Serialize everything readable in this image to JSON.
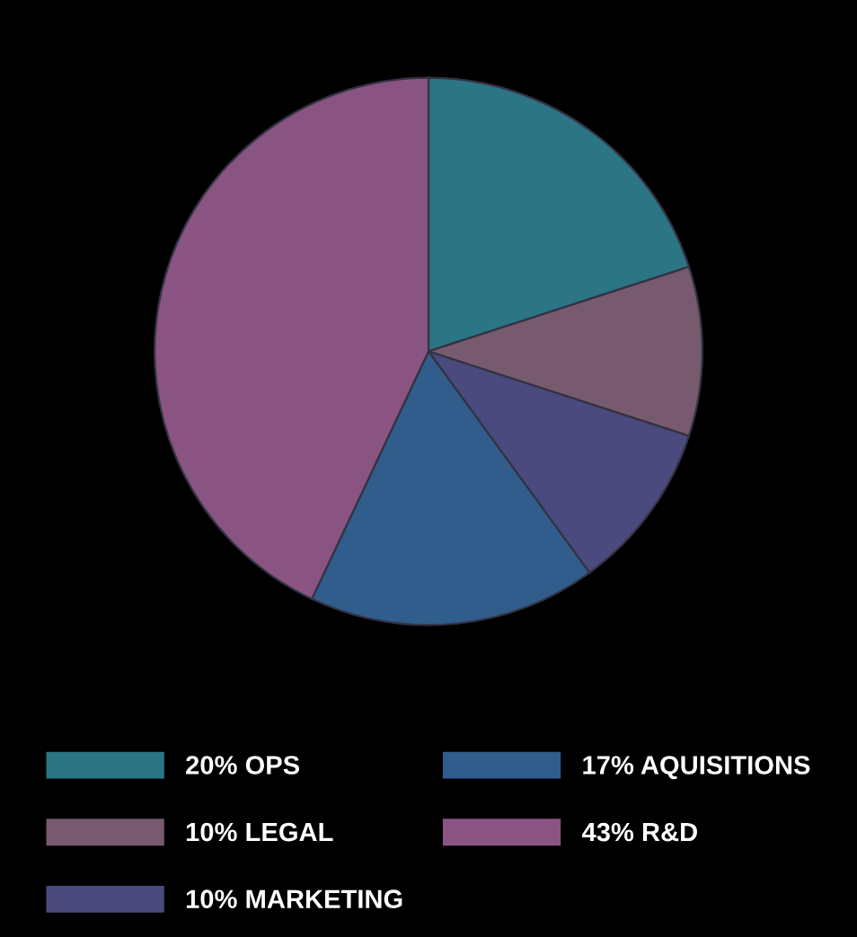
{
  "chart_data": {
    "type": "pie",
    "categories": [
      "20% OPS",
      "10% LEGAL",
      "10% MARKETING",
      "17% AQUISITIONS",
      "43% R&D"
    ],
    "values": [
      20,
      10,
      10,
      17,
      43
    ],
    "colors": [
      "#2b7585",
      "#775a6e",
      "#4a4a7e",
      "#305d8c",
      "#8a5482"
    ],
    "legend": "bottom"
  }
}
